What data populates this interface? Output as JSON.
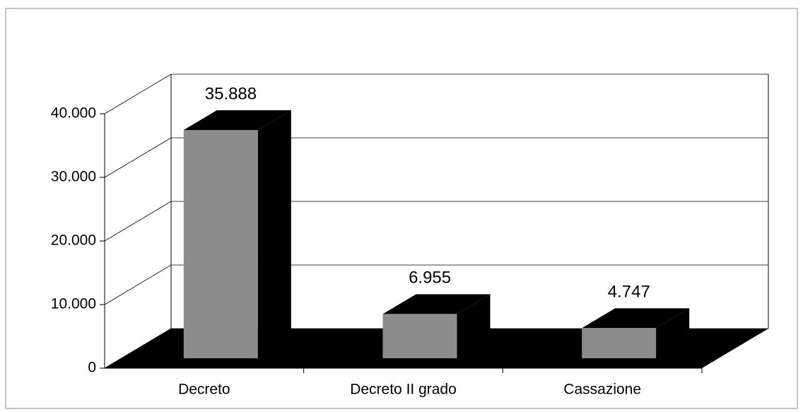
{
  "chart_data": {
    "type": "bar3d",
    "categories": [
      "Decreto",
      "Decreto II grado",
      "Cassazione"
    ],
    "values": [
      35888,
      6955,
      4747
    ],
    "value_labels": [
      "35.888",
      "6.955",
      "4.747"
    ],
    "color": "#8c8c8c",
    "ylim": [
      0,
      40000
    ],
    "yticks": [
      0,
      {
        "value": 10000,
        "label": "10.000"
      },
      {
        "value": 20000,
        "label": "20.000"
      },
      {
        "value": 30000,
        "label": "30.000"
      },
      {
        "value": 40000,
        "label": "40.000"
      }
    ],
    "grid": true
  }
}
